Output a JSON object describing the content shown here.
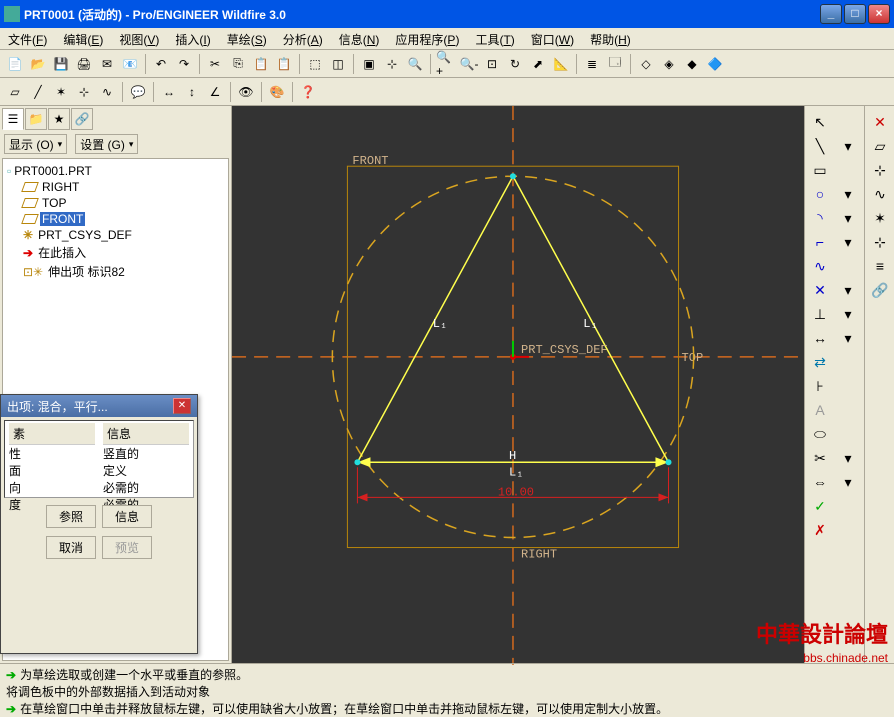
{
  "window": {
    "title": "PRT0001 (活动的) - Pro/ENGINEER Wildfire 3.0"
  },
  "menu": {
    "items": [
      {
        "l": "文件",
        "k": "F"
      },
      {
        "l": "编辑",
        "k": "E"
      },
      {
        "l": "视图",
        "k": "V"
      },
      {
        "l": "插入",
        "k": "I"
      },
      {
        "l": "草绘",
        "k": "S"
      },
      {
        "l": "分析",
        "k": "A"
      },
      {
        "l": "信息",
        "k": "N"
      },
      {
        "l": "应用程序",
        "k": "P"
      },
      {
        "l": "工具",
        "k": "T"
      },
      {
        "l": "窗口",
        "k": "W"
      },
      {
        "l": "帮助",
        "k": "H"
      }
    ]
  },
  "left": {
    "show": "显示 (O)",
    "settings": "设置 (G)",
    "root": "PRT0001.PRT",
    "items": [
      {
        "label": "RIGHT",
        "type": "datum"
      },
      {
        "label": "TOP",
        "type": "datum"
      },
      {
        "label": "FRONT",
        "type": "datum",
        "sel": true
      },
      {
        "label": "PRT_CSYS_DEF",
        "type": "csys"
      },
      {
        "label": "在此插入",
        "type": "arrow"
      },
      {
        "label": "伸出项 标识82",
        "type": "ext"
      }
    ]
  },
  "dlg": {
    "title": "出项: 混合，平行...",
    "col1header": "素",
    "col2header": "信息",
    "col1": [
      "素",
      "性",
      "面",
      "向",
      "度"
    ],
    "col2": [
      "信息",
      "竖直的",
      "定义",
      "必需的",
      "必需的"
    ],
    "btn_ref": "参照",
    "btn_info": "信息",
    "btn_cancel": "取消",
    "btn_preview": "预览"
  },
  "canvas": {
    "front": "FRONT",
    "top": "TOP",
    "right": "RIGHT",
    "csys": "PRT_CSYS_DEF",
    "dim": "10.00",
    "L1": "L₁",
    "H": "H",
    "colors": {
      "frame": "#b8860b",
      "axis": "#d2691e",
      "circle": "#daa520",
      "tri": "#ffff4d",
      "dim": "#d62020",
      "txt": "#d2b48c"
    }
  },
  "status": {
    "line1": "为草绘选取或创建一个水平或垂直的参照。",
    "line2": "将调色板中的外部数据插入到活动对象",
    "line3": "在草绘窗口中单击并释放鼠标左键，可以使用缺省大小放置；在草绘窗口中单击并拖动鼠标左键，可以使用定制大小放置。"
  },
  "wm": {
    "t": "中華設計論壇",
    "u": "bbs.chinade.net"
  }
}
